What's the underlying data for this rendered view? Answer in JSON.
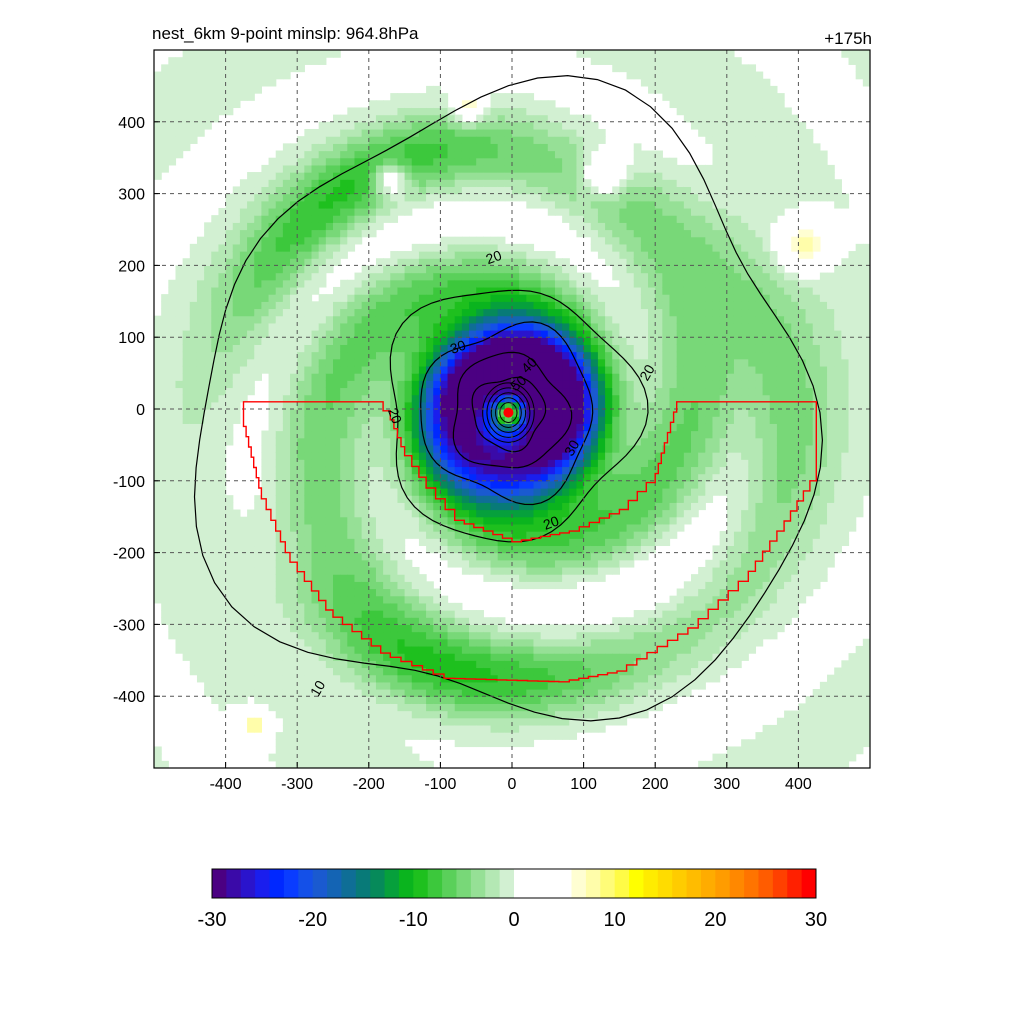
{
  "chart_data": {
    "type": "heatmap",
    "title_left": "nest_6km  9-point minslp: 964.8hPa",
    "title_right": "+175h",
    "xlim": [
      -500,
      500
    ],
    "ylim": [
      -500,
      500
    ],
    "x_ticks": [
      -400,
      -300,
      -200,
      -100,
      0,
      100,
      200,
      300,
      400
    ],
    "y_ticks": [
      400,
      300,
      200,
      100,
      0,
      -100,
      -200,
      -300,
      -400
    ],
    "grid": true,
    "center_marker": {
      "x": -5,
      "y": -5,
      "color": "#ff0000"
    },
    "field": {
      "storm_center": {
        "x": -5,
        "y": -5
      },
      "eye_radius": 25,
      "rmw": 60,
      "min_value": -28
    },
    "contour_levels": [
      10,
      20,
      30,
      40,
      50
    ],
    "contour_labels": [
      {
        "text": "20",
        "x": -25,
        "y": 210,
        "angle": -20
      },
      {
        "text": "30",
        "x": -75,
        "y": 85,
        "angle": -20
      },
      {
        "text": "40",
        "x": 25,
        "y": 60,
        "angle": -45
      },
      {
        "text": "50",
        "x": 10,
        "y": 35,
        "angle": -40
      },
      {
        "text": "20",
        "x": 190,
        "y": 50,
        "angle": -60
      },
      {
        "text": "20",
        "x": -165,
        "y": -10,
        "angle": 70
      },
      {
        "text": "30",
        "x": 85,
        "y": -55,
        "angle": -60
      },
      {
        "text": "20",
        "x": 55,
        "y": -160,
        "angle": -20
      },
      {
        "text": "10",
        "x": -270,
        "y": -390,
        "angle": -60
      }
    ],
    "red_polygon": [
      [
        -375,
        10
      ],
      [
        -190,
        10
      ],
      [
        -170,
        -15
      ],
      [
        -150,
        -65
      ],
      [
        -120,
        -110
      ],
      [
        -80,
        -155
      ],
      [
        0,
        -185
      ],
      [
        80,
        -170
      ],
      [
        150,
        -140
      ],
      [
        200,
        -90
      ],
      [
        230,
        10
      ],
      [
        425,
        10
      ],
      [
        425,
        -100
      ],
      [
        380,
        -170
      ],
      [
        330,
        -240
      ],
      [
        260,
        -305
      ],
      [
        160,
        -365
      ],
      [
        80,
        -380
      ],
      [
        -80,
        -375
      ],
      [
        -170,
        -340
      ],
      [
        -250,
        -280
      ],
      [
        -310,
        -200
      ],
      [
        -350,
        -110
      ],
      [
        -375,
        -10
      ]
    ],
    "colorbar": {
      "min": -30,
      "max": 30,
      "labels": [
        "-30",
        "-20",
        "-10",
        "0",
        "10",
        "20",
        "30"
      ],
      "colors": [
        "#4b0082",
        "#3a0aa8",
        "#2a14cc",
        "#1a1eee",
        "#0028ff",
        "#0a3cff",
        "#1450e8",
        "#1a5ad0",
        "#1464b4",
        "#0f6e96",
        "#087a78",
        "#068a5a",
        "#06a03c",
        "#0ab41e",
        "#1ec01e",
        "#3cc83c",
        "#5ad05a",
        "#78d878",
        "#96e096",
        "#b4e8b4",
        "#d2f0d2",
        "#ffffff",
        "#ffffff",
        "#ffffff",
        "#ffffff",
        "#fffed2",
        "#fffdaa",
        "#fffc78",
        "#fffb46",
        "#ffff00",
        "#ffec00",
        "#ffdc00",
        "#ffcc00",
        "#ffbc00",
        "#ffac00",
        "#ff9c00",
        "#ff8800",
        "#ff7400",
        "#ff5c00",
        "#ff4000",
        "#ff2000",
        "#ff0000"
      ]
    }
  }
}
